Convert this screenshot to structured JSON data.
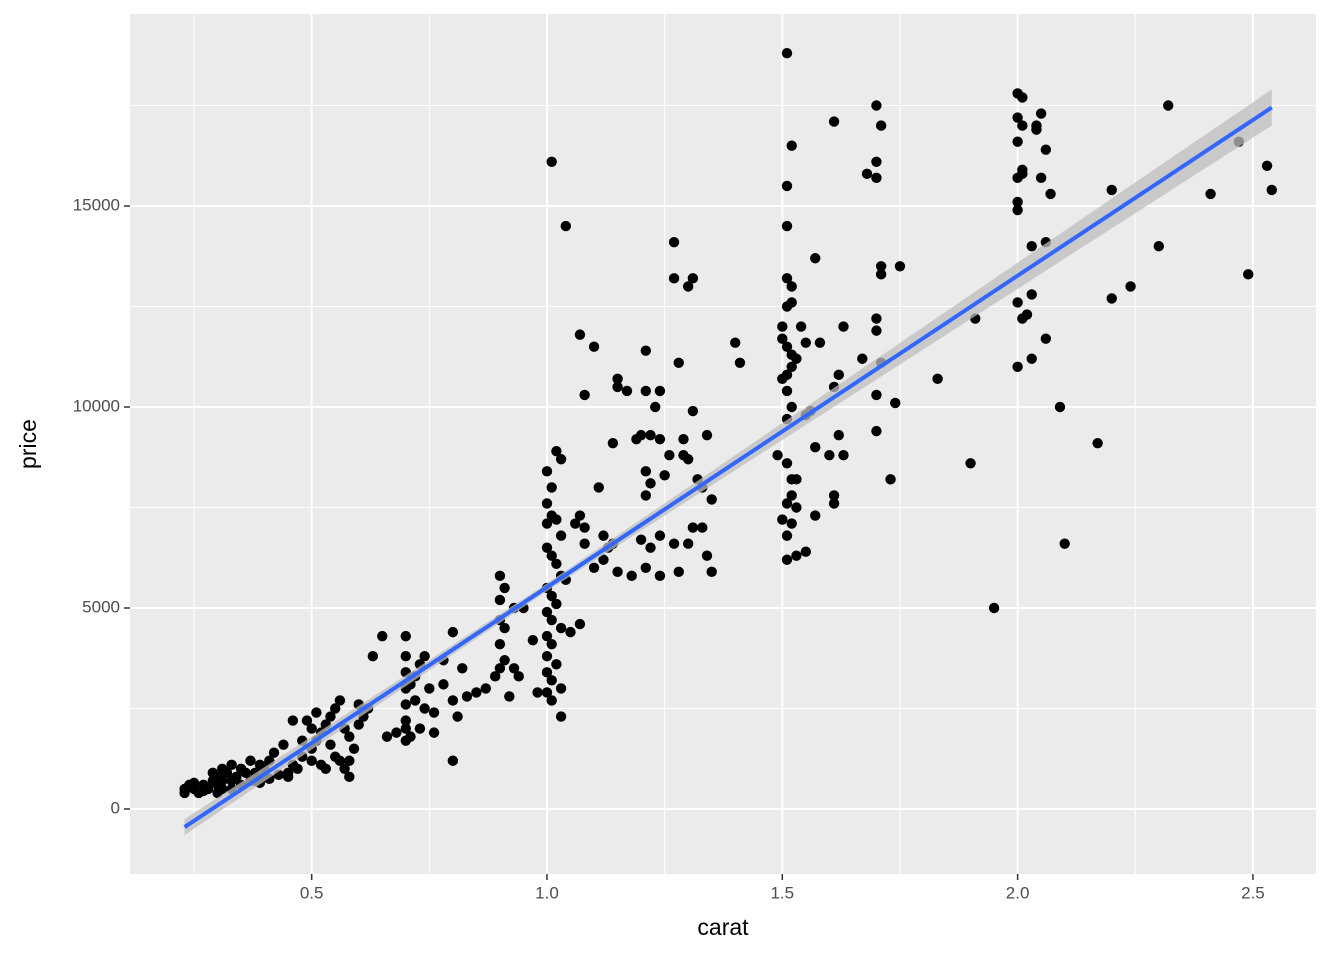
{
  "chart_data": {
    "type": "scatter",
    "x_label": "carat",
    "y_label": "price",
    "xlim": [
      0.114,
      2.634
    ],
    "ylim": [
      -1617,
      19776
    ],
    "xticks": [
      0.5,
      {
        "value": 1,
        "label": "1.0"
      },
      1.5,
      {
        "value": 2,
        "label": "2.0"
      },
      2.5
    ],
    "yticks": [
      0,
      5000,
      10000,
      15000
    ],
    "x_minor_ticks": [
      0.25,
      0.75,
      1.25,
      1.75,
      2.25
    ],
    "y_minor_ticks": [
      2500,
      7500,
      12500,
      17500
    ],
    "grid": true,
    "panel_color": "#ebebeb",
    "point_color": "#000000",
    "x": [
      1.51,
      1.01,
      1.04,
      1.27,
      1.52,
      1.51,
      1.61,
      1.7,
      1.71,
      1.7,
      1.68,
      1.7,
      1.51,
      1.52,
      2.0,
      2.01,
      2.0,
      2.01,
      2.04,
      2.05,
      2.04,
      2.06,
      2.0,
      2.01,
      2.0,
      2.01,
      2.05,
      2.07,
      2.0,
      2.0,
      2.03,
      2.06,
      2.32,
      2.47,
      2.53,
      2.54,
      2.41,
      2.2,
      2.3,
      2.49,
      2.24,
      2.2,
      1.91,
      2.03,
      2.0,
      2.02,
      2.01,
      2.06,
      2.03,
      2.0,
      2.09,
      2.17,
      1.9,
      2.1,
      1.95,
      1.83,
      1.74,
      1.7,
      1.7,
      1.73,
      1.7,
      1.7,
      1.71,
      1.71,
      1.71,
      1.75,
      1.67,
      1.63,
      1.57,
      1.51,
      1.5,
      1.52,
      1.51,
      1.54,
      1.5,
      1.51,
      1.52,
      1.55,
      1.53,
      1.52,
      1.58,
      1.5,
      1.51,
      1.51,
      1.52,
      1.51,
      1.55,
      1.56,
      1.62,
      1.61,
      1.6,
      1.63,
      1.62,
      1.57,
      1.49,
      1.51,
      1.52,
      1.53,
      1.52,
      1.51,
      1.53,
      1.5,
      1.52,
      1.57,
      1.61,
      1.61,
      1.51,
      1.53,
      1.55,
      1.51,
      1.4,
      1.41,
      1.28,
      1.27,
      1.3,
      1.31,
      1.1,
      1.07,
      1.21,
      1.15,
      1.15,
      1.17,
      1.08,
      1.21,
      1.24,
      1.23,
      1.31,
      1.34,
      1.29,
      1.24,
      1.19,
      1.2,
      1.22,
      1.14,
      1.26,
      1.29,
      1.3,
      1.21,
      1.22,
      1.25,
      1.32,
      1.33,
      1.35,
      1.21,
      1.11,
      1.12,
      1.13,
      1.14,
      1.2,
      1.22,
      1.24,
      1.27,
      1.3,
      1.31,
      1.33,
      1.34,
      1.35,
      1.28,
      1.24,
      1.21,
      1.18,
      1.15,
      1.12,
      1.1,
      1.08,
      1.06,
      1.07,
      1.08,
      1.02,
      1.0,
      1.01,
      1.03,
      1.0,
      1.01,
      1.0,
      1.02,
      1.03,
      1.0,
      1.01,
      1.02,
      1.03,
      1.04,
      1.0,
      1.01,
      1.02,
      1.0,
      1.01,
      1.03,
      1.05,
      1.07,
      1.0,
      1.01,
      1.0,
      1.02,
      1.0,
      1.01,
      1.03,
      1.0,
      1.01,
      1.03,
      0.98,
      0.97,
      0.95,
      0.93,
      0.91,
      0.9,
      0.9,
      0.9,
      0.91,
      0.9,
      0.91,
      0.93,
      0.94,
      0.9,
      0.92,
      0.89,
      0.87,
      0.85,
      0.83,
      0.82,
      0.8,
      0.78,
      0.78,
      0.8,
      0.81,
      0.8,
      0.76,
      0.75,
      0.74,
      0.73,
      0.72,
      0.71,
      0.7,
      0.7,
      0.7,
      0.7,
      0.7,
      0.7,
      0.7,
      0.7,
      0.72,
      0.73,
      0.71,
      0.74,
      0.76,
      0.68,
      0.66,
      0.65,
      0.63,
      0.62,
      0.61,
      0.6,
      0.58,
      0.56,
      0.55,
      0.54,
      0.53,
      0.52,
      0.51,
      0.5,
      0.5,
      0.52,
      0.55,
      0.57,
      0.58,
      0.58,
      0.59,
      0.57,
      0.54,
      0.51,
      0.49,
      0.48,
      0.46,
      0.45,
      0.44,
      0.42,
      0.41,
      0.4,
      0.4,
      0.39,
      0.38,
      0.37,
      0.36,
      0.35,
      0.34,
      0.33,
      0.33,
      0.32,
      0.31,
      0.31,
      0.3,
      0.3,
      0.3,
      0.29,
      0.28,
      0.27,
      0.26,
      0.25,
      0.24,
      0.23,
      0.23,
      0.25,
      0.27,
      0.29,
      0.31,
      0.33,
      0.35,
      0.37,
      0.38,
      0.39,
      0.41,
      0.43,
      0.45,
      0.47,
      0.48,
      0.46,
      0.53,
      0.56,
      0.6,
      0.5
    ],
    "values": [
      18800,
      16100,
      14500,
      14100,
      16500,
      15500,
      17100,
      17500,
      17000,
      16100,
      15800,
      15700,
      14500,
      13000,
      17800,
      17700,
      17200,
      17000,
      17000,
      17300,
      16900,
      16400,
      16600,
      15800,
      15700,
      15900,
      15700,
      15300,
      15100,
      14900,
      14000,
      14100,
      17500,
      16600,
      16000,
      15400,
      15300,
      15400,
      14000,
      13300,
      13000,
      12700,
      12200,
      12800,
      12600,
      12300,
      12200,
      11700,
      11200,
      11000,
      10000,
      9100,
      8600,
      6600,
      5000,
      10700,
      10100,
      10300,
      9400,
      8200,
      11900,
      12200,
      11100,
      13300,
      13500,
      13500,
      11200,
      12000,
      13700,
      13200,
      12000,
      12600,
      12500,
      12000,
      11700,
      11500,
      11300,
      11600,
      11200,
      11000,
      11600,
      10700,
      10800,
      10400,
      10000,
      9700,
      9800,
      9900,
      10800,
      10500,
      8800,
      8800,
      9300,
      9000,
      8800,
      8600,
      8200,
      8200,
      7800,
      7600,
      7500,
      7200,
      7100,
      7300,
      7600,
      7800,
      6800,
      6300,
      6400,
      6200,
      11600,
      11100,
      11100,
      13200,
      13000,
      13200,
      11500,
      11800,
      11400,
      10700,
      10500,
      10400,
      10300,
      10400,
      10400,
      10000,
      9900,
      9300,
      9200,
      9200,
      9200,
      9300,
      9300,
      9100,
      8800,
      8800,
      8700,
      8400,
      8100,
      8300,
      8200,
      8000,
      7700,
      7800,
      8000,
      6800,
      6500,
      6600,
      6700,
      6500,
      6800,
      6600,
      6600,
      7000,
      7000,
      6300,
      5900,
      5900,
      5800,
      6000,
      5800,
      5900,
      6200,
      6000,
      6600,
      7100,
      7300,
      7000,
      8900,
      8400,
      8000,
      8700,
      7600,
      7300,
      7100,
      7200,
      6800,
      6500,
      6300,
      6100,
      5800,
      5700,
      5500,
      5300,
      5100,
      4900,
      4700,
      4500,
      4400,
      4600,
      4300,
      4100,
      3800,
      3600,
      3400,
      3200,
      3000,
      2900,
      2700,
      2300,
      2900,
      4200,
      5000,
      5000,
      5500,
      5800,
      5200,
      4700,
      4500,
      4100,
      3700,
      3500,
      3300,
      3500,
      2800,
      3300,
      3000,
      2900,
      2800,
      3500,
      4400,
      3700,
      3100,
      2700,
      2300,
      1200,
      2400,
      3000,
      3800,
      3600,
      3300,
      3100,
      4300,
      3800,
      3400,
      3000,
      2600,
      2200,
      2000,
      1700,
      2700,
      2000,
      1800,
      2500,
      1900,
      1900,
      1800,
      4300,
      3800,
      2500,
      2300,
      2100,
      1800,
      2700,
      2500,
      2300,
      2100,
      1900,
      1700,
      1500,
      1200,
      1100,
      1300,
      1000,
      800,
      1200,
      1500,
      2000,
      1600,
      2400,
      2200,
      1300,
      1100,
      900,
      1600,
      1400,
      1200,
      1000,
      800,
      1100,
      900,
      700,
      900,
      600,
      800,
      700,
      500,
      900,
      700,
      500,
      800,
      600,
      400,
      700,
      500,
      600,
      400,
      500,
      600,
      400,
      500,
      650,
      450,
      900,
      1000,
      1100,
      1000,
      1200,
      700,
      650,
      750,
      850,
      800,
      1000,
      1700,
      2200,
      1000,
      1200,
      2600,
      2000
    ],
    "fit": {
      "color": "#3366ff",
      "band_color": "#bdbdbd",
      "x": [
        0.23,
        1.0,
        2.54
      ],
      "values": [
        -450,
        5517,
        17450
      ],
      "lower": [
        -650,
        5420,
        17000
      ],
      "upper": [
        -250,
        5610,
        17900
      ]
    }
  }
}
